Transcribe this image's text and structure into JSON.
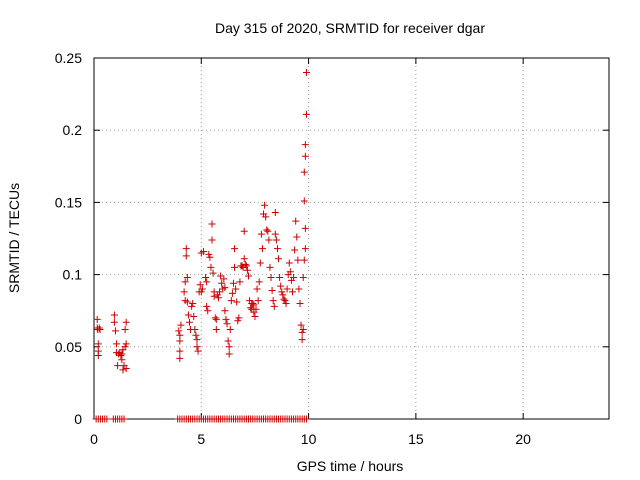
{
  "chart_data": {
    "type": "scatter",
    "title": "Day 315 of 2020, SRMTID for receiver dgar",
    "xlabel": "GPS time / hours",
    "ylabel": "SRMTID / TECUs",
    "xlim": [
      0,
      24
    ],
    "ylim": [
      0,
      0.25
    ],
    "xticks": [
      0,
      5,
      10,
      15,
      20
    ],
    "xtick_labels": [
      "0",
      "5",
      "10",
      "15",
      "20"
    ],
    "yticks": [
      0,
      0.05,
      0.1,
      0.15,
      0.2,
      0.25
    ],
    "ytick_labels": [
      "0",
      "0.05",
      "0.1",
      "0.15",
      "0.2",
      "0.25"
    ],
    "grid": true,
    "legend": "none",
    "marker": "+",
    "color": "#cc0000",
    "series": [
      {
        "name": "SRMTID",
        "points": [
          [
            0.15,
            0.069
          ],
          [
            0.15,
            0.063
          ],
          [
            0.18,
            0.062
          ],
          [
            0.2,
            0.052
          ],
          [
            0.2,
            0.047
          ],
          [
            0.2,
            0.044
          ],
          [
            0.25,
            0.063
          ],
          [
            0.28,
            0.062
          ],
          [
            0.95,
            0.072
          ],
          [
            0.95,
            0.067
          ],
          [
            1.0,
            0.061
          ],
          [
            1.05,
            0.052
          ],
          [
            1.05,
            0.046
          ],
          [
            1.1,
            0.037
          ],
          [
            1.15,
            0.045
          ],
          [
            1.2,
            0.046
          ],
          [
            1.25,
            0.044
          ],
          [
            1.3,
            0.045
          ],
          [
            1.3,
            0.041
          ],
          [
            1.35,
            0.048
          ],
          [
            1.35,
            0.034
          ],
          [
            1.4,
            0.037
          ],
          [
            1.45,
            0.062
          ],
          [
            1.45,
            0.05
          ],
          [
            1.5,
            0.067
          ],
          [
            1.5,
            0.052
          ],
          [
            1.5,
            0.035
          ],
          [
            3.95,
            0.061
          ],
          [
            4.0,
            0.058
          ],
          [
            4.0,
            0.054
          ],
          [
            4.0,
            0.047
          ],
          [
            4.0,
            0.042
          ],
          [
            4.05,
            0.065
          ],
          [
            4.2,
            0.088
          ],
          [
            4.25,
            0.095
          ],
          [
            4.25,
            0.082
          ],
          [
            4.3,
            0.118
          ],
          [
            4.3,
            0.113
          ],
          [
            4.35,
            0.098
          ],
          [
            4.35,
            0.081
          ],
          [
            4.4,
            0.072
          ],
          [
            4.45,
            0.067
          ],
          [
            4.5,
            0.062
          ],
          [
            4.55,
            0.078
          ],
          [
            4.6,
            0.08
          ],
          [
            4.65,
            0.071
          ],
          [
            4.7,
            0.062
          ],
          [
            4.75,
            0.058
          ],
          [
            4.8,
            0.055
          ],
          [
            4.8,
            0.05
          ],
          [
            4.85,
            0.047
          ],
          [
            4.9,
            0.088
          ],
          [
            4.95,
            0.093
          ],
          [
            5.0,
            0.088
          ],
          [
            5.0,
            0.115
          ],
          [
            5.05,
            0.09
          ],
          [
            5.1,
            0.116
          ],
          [
            5.2,
            0.098
          ],
          [
            5.25,
            0.095
          ],
          [
            5.25,
            0.078
          ],
          [
            5.3,
            0.075
          ],
          [
            5.35,
            0.114
          ],
          [
            5.4,
            0.112
          ],
          [
            5.45,
            0.105
          ],
          [
            5.5,
            0.135
          ],
          [
            5.5,
            0.124
          ],
          [
            5.55,
            0.101
          ],
          [
            5.6,
            0.088
          ],
          [
            5.6,
            0.085
          ],
          [
            5.65,
            0.07
          ],
          [
            5.7,
            0.069
          ],
          [
            5.7,
            0.062
          ],
          [
            5.75,
            0.086
          ],
          [
            5.8,
            0.084
          ],
          [
            5.85,
            0.088
          ],
          [
            5.9,
            0.099
          ],
          [
            5.95,
            0.094
          ],
          [
            6.0,
            0.09
          ],
          [
            6.05,
            0.097
          ],
          [
            6.1,
            0.091
          ],
          [
            6.1,
            0.075
          ],
          [
            6.15,
            0.069
          ],
          [
            6.2,
            0.066
          ],
          [
            6.25,
            0.054
          ],
          [
            6.3,
            0.05
          ],
          [
            6.3,
            0.045
          ],
          [
            6.35,
            0.062
          ],
          [
            6.4,
            0.082
          ],
          [
            6.45,
            0.087
          ],
          [
            6.5,
            0.094
          ],
          [
            6.55,
            0.105
          ],
          [
            6.55,
            0.118
          ],
          [
            6.6,
            0.09
          ],
          [
            6.65,
            0.081
          ],
          [
            6.7,
            0.068
          ],
          [
            6.75,
            0.07
          ],
          [
            6.8,
            0.095
          ],
          [
            6.85,
            0.106
          ],
          [
            6.9,
            0.106
          ],
          [
            6.95,
            0.105
          ],
          [
            7.0,
            0.111
          ],
          [
            7.0,
            0.13
          ],
          [
            7.05,
            0.107
          ],
          [
            7.1,
            0.106
          ],
          [
            7.15,
            0.103
          ],
          [
            7.2,
            0.099
          ],
          [
            7.25,
            0.082
          ],
          [
            7.3,
            0.077
          ],
          [
            7.35,
            0.076
          ],
          [
            7.35,
            0.08
          ],
          [
            7.4,
            0.08
          ],
          [
            7.45,
            0.079
          ],
          [
            7.45,
            0.074
          ],
          [
            7.5,
            0.071
          ],
          [
            7.55,
            0.076
          ],
          [
            7.6,
            0.09
          ],
          [
            7.65,
            0.082
          ],
          [
            7.7,
            0.095
          ],
          [
            7.75,
            0.108
          ],
          [
            7.8,
            0.128
          ],
          [
            7.85,
            0.118
          ],
          [
            7.9,
            0.142
          ],
          [
            7.95,
            0.148
          ],
          [
            8.0,
            0.14
          ],
          [
            8.05,
            0.131
          ],
          [
            8.1,
            0.13
          ],
          [
            8.15,
            0.124
          ],
          [
            8.2,
            0.105
          ],
          [
            8.25,
            0.098
          ],
          [
            8.3,
            0.089
          ],
          [
            8.35,
            0.082
          ],
          [
            8.4,
            0.078
          ],
          [
            8.45,
            0.143
          ],
          [
            8.45,
            0.128
          ],
          [
            8.5,
            0.124
          ],
          [
            8.55,
            0.118
          ],
          [
            8.6,
            0.111
          ],
          [
            8.65,
            0.098
          ],
          [
            8.7,
            0.092
          ],
          [
            8.75,
            0.088
          ],
          [
            8.8,
            0.086
          ],
          [
            8.85,
            0.083
          ],
          [
            8.9,
            0.082
          ],
          [
            8.95,
            0.08
          ],
          [
            9.0,
            0.09
          ],
          [
            9.05,
            0.1
          ],
          [
            9.1,
            0.108
          ],
          [
            9.15,
            0.102
          ],
          [
            9.2,
            0.096
          ],
          [
            9.25,
            0.088
          ],
          [
            9.3,
            0.098
          ],
          [
            9.35,
            0.117
          ],
          [
            9.4,
            0.137
          ],
          [
            9.45,
            0.126
          ],
          [
            9.5,
            0.11
          ],
          [
            9.55,
            0.09
          ],
          [
            9.6,
            0.08
          ],
          [
            9.65,
            0.065
          ],
          [
            9.7,
            0.06
          ],
          [
            9.7,
            0.055
          ],
          [
            9.75,
            0.098
          ],
          [
            9.8,
            0.151
          ],
          [
            9.8,
            0.171
          ],
          [
            9.85,
            0.182
          ],
          [
            9.85,
            0.19
          ],
          [
            9.9,
            0.211
          ],
          [
            9.9,
            0.24
          ],
          [
            9.85,
            0.132
          ],
          [
            9.85,
            0.118
          ],
          [
            9.8,
            0.11
          ],
          [
            9.75,
            0.062
          ],
          [
            0.1,
            0
          ],
          [
            0.2,
            0
          ],
          [
            0.3,
            0
          ],
          [
            0.4,
            0
          ],
          [
            0.5,
            0
          ],
          [
            0.6,
            0
          ],
          [
            0.9,
            0
          ],
          [
            1.0,
            0
          ],
          [
            1.1,
            0
          ],
          [
            1.2,
            0
          ],
          [
            1.3,
            0
          ],
          [
            1.4,
            0
          ],
          [
            3.9,
            0
          ],
          [
            4.0,
            0
          ],
          [
            4.1,
            0
          ],
          [
            4.2,
            0
          ],
          [
            4.3,
            0
          ],
          [
            4.4,
            0
          ],
          [
            4.5,
            0
          ],
          [
            4.6,
            0
          ],
          [
            4.7,
            0
          ],
          [
            4.8,
            0
          ],
          [
            4.9,
            0
          ],
          [
            5.0,
            0
          ],
          [
            5.1,
            0
          ],
          [
            5.2,
            0
          ],
          [
            5.3,
            0
          ],
          [
            5.4,
            0
          ],
          [
            5.5,
            0
          ],
          [
            5.6,
            0
          ],
          [
            5.7,
            0
          ],
          [
            5.8,
            0
          ],
          [
            5.9,
            0
          ],
          [
            6.0,
            0
          ],
          [
            6.1,
            0
          ],
          [
            6.2,
            0
          ],
          [
            6.3,
            0
          ],
          [
            6.4,
            0
          ],
          [
            6.5,
            0
          ],
          [
            6.6,
            0
          ],
          [
            6.7,
            0
          ],
          [
            6.8,
            0
          ],
          [
            6.9,
            0
          ],
          [
            7.0,
            0
          ],
          [
            7.1,
            0
          ],
          [
            7.2,
            0
          ],
          [
            7.3,
            0
          ],
          [
            7.4,
            0
          ],
          [
            7.5,
            0
          ],
          [
            7.6,
            0
          ],
          [
            7.7,
            0
          ],
          [
            7.8,
            0
          ],
          [
            7.9,
            0
          ],
          [
            8.0,
            0
          ],
          [
            8.1,
            0
          ],
          [
            8.2,
            0
          ],
          [
            8.3,
            0
          ],
          [
            8.4,
            0
          ],
          [
            8.5,
            0
          ],
          [
            8.6,
            0
          ],
          [
            8.7,
            0
          ],
          [
            8.8,
            0
          ],
          [
            8.9,
            0
          ],
          [
            9.0,
            0
          ],
          [
            9.1,
            0
          ],
          [
            9.2,
            0
          ],
          [
            9.3,
            0
          ],
          [
            9.4,
            0
          ],
          [
            9.5,
            0
          ],
          [
            9.6,
            0
          ],
          [
            9.7,
            0
          ],
          [
            9.8,
            0
          ],
          [
            9.9,
            0
          ]
        ]
      }
    ]
  }
}
